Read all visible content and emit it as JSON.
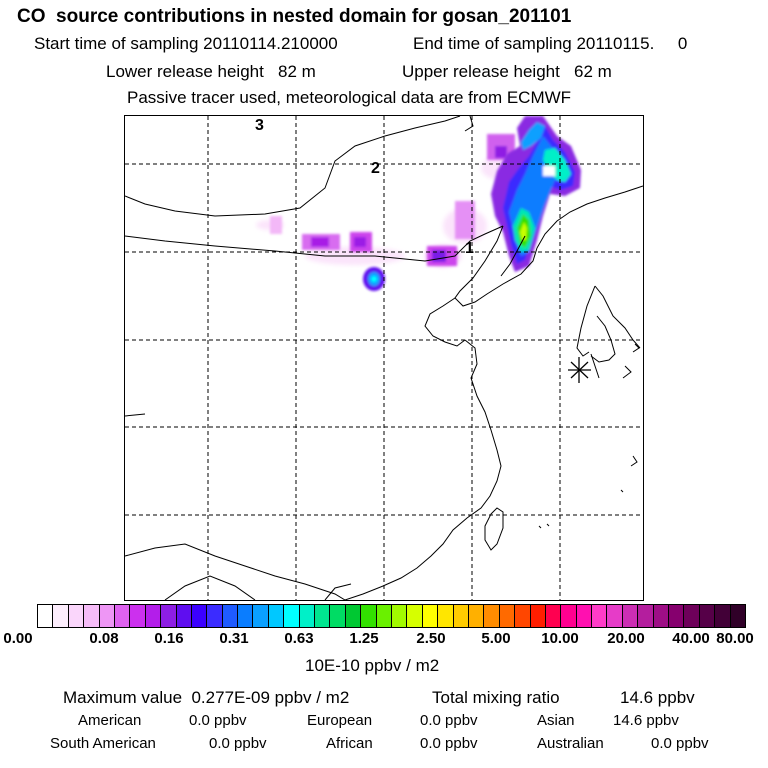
{
  "header": {
    "title": "CO  source contributions in nested domain for gosan_201101",
    "start_label": "Start time of sampling 20110114.210000",
    "end_label": "End time of sampling 20110115.     0",
    "lower_label": "Lower release height   82 m",
    "upper_label": "Upper release height   62 m",
    "tracer_label": "Passive tracer used, meteorological data are from ECMWF"
  },
  "map": {
    "labels": [
      "1",
      "2",
      "3"
    ],
    "receptor_marker": "asterisk-marker"
  },
  "colorbar": {
    "unit": "10E-10 ppbv / m2",
    "ticks": [
      "0.00",
      "0.08",
      "0.16",
      "0.31",
      "0.63",
      "1.25",
      "2.50",
      "5.00",
      "10.00",
      "20.00",
      "40.00",
      "80.00"
    ],
    "colors": [
      "#ffffff",
      "#fdeefd",
      "#fad6fb",
      "#f6bcf8",
      "#ee96f5",
      "#df62f0",
      "#cc30ee",
      "#b31eea",
      "#8d1ee4",
      "#5f0ef0",
      "#3b00ff",
      "#3b2cff",
      "#1f5bff",
      "#0a7dff",
      "#0aa0ff",
      "#00c8ff",
      "#00ffff",
      "#00f0c8",
      "#00e690",
      "#00dc64",
      "#00c832",
      "#32e000",
      "#6af000",
      "#a2fa00",
      "#d6ff00",
      "#ffff00",
      "#ffe600",
      "#ffcc00",
      "#ffb000",
      "#ff8c00",
      "#ff6a00",
      "#ff4600",
      "#ff1e00",
      "#ff0050",
      "#ff0090",
      "#ff10b0",
      "#ff3cc8",
      "#e63cc8",
      "#cc2eb4",
      "#b41e9e",
      "#9e0e86",
      "#86006e",
      "#6e005a",
      "#560048",
      "#420037",
      "#300028"
    ]
  },
  "stats": {
    "max_label": "Maximum value  0.277E-09 ppbv / m2",
    "total_label": "Total mixing ratio",
    "total_value": "14.6 ppbv",
    "regions": [
      {
        "name": "American",
        "value": "0.0 ppbv"
      },
      {
        "name": "European",
        "value": "0.0 ppbv"
      },
      {
        "name": "Asian",
        "value": "14.6 ppbv"
      },
      {
        "name": "South American",
        "value": "0.0 ppbv"
      },
      {
        "name": "African",
        "value": "0.0 ppbv"
      },
      {
        "name": "Australian",
        "value": "0.0 ppbv"
      }
    ]
  }
}
